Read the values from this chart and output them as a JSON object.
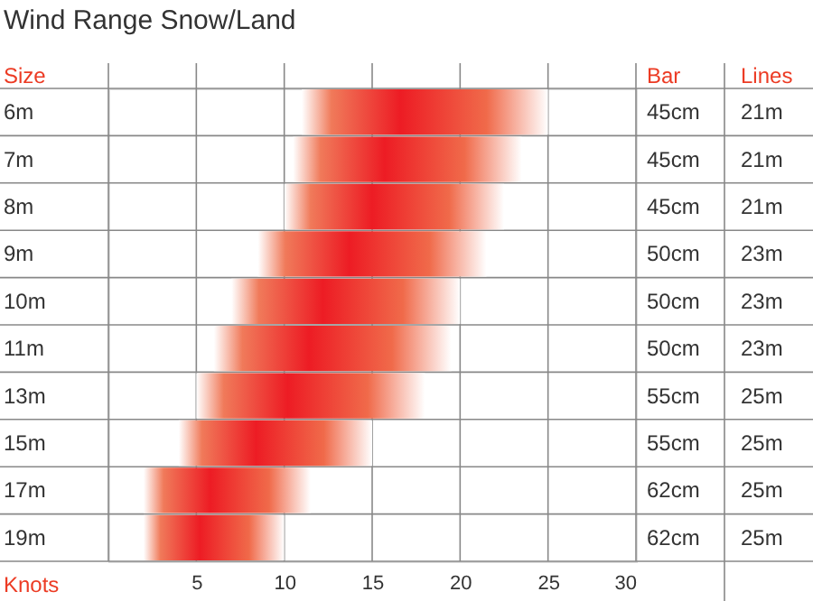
{
  "chart_data": {
    "type": "bar",
    "orientation": "horizontal",
    "title": "Wind Range Snow/Land",
    "ylabel": "Size",
    "xlabel": "Knots",
    "categories": [
      "6m",
      "7m",
      "8m",
      "9m",
      "10m",
      "11m",
      "13m",
      "15m",
      "17m",
      "19m"
    ],
    "base": [
      11,
      10.5,
      10,
      8.5,
      7,
      6,
      5,
      4,
      2,
      2
    ],
    "values": [
      14,
      13,
      12.5,
      13,
      13,
      13.5,
      13,
      11,
      9.5,
      8
    ],
    "color": "#ed1c24",
    "xlim": [
      0,
      30
    ],
    "xticks": [
      {
        "value": 0,
        "label": null
      },
      5,
      10,
      15,
      20,
      25,
      30
    ],
    "grid": "x",
    "y2label": "Bar",
    "y2_categories": [
      "45cm",
      "45cm",
      "45cm",
      "50cm",
      "50cm",
      "50cm",
      "55cm",
      "55cm",
      "62cm",
      "62cm"
    ],
    "annotations": [
      "Lines",
      "21m",
      "21m",
      "21m",
      "23m",
      "23m",
      "23m",
      "25m",
      "25m",
      "25m",
      "25m"
    ]
  }
}
